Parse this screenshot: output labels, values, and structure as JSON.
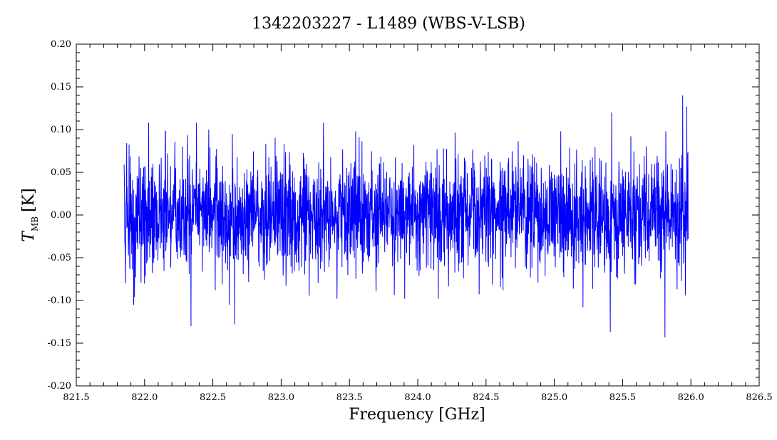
{
  "chart_data": {
    "type": "line",
    "title": "1342203227 - L1489 (WBS-V-LSB)",
    "xlabel": "Frequency [GHz]",
    "ylabel_main": "T",
    "ylabel_sub": "MB",
    "ylabel_unit": "[K]",
    "xlim": [
      821.5,
      826.5
    ],
    "ylim": [
      -0.2,
      0.2
    ],
    "xticks": [
      821.5,
      822.0,
      822.5,
      823.0,
      823.5,
      824.0,
      824.5,
      825.0,
      825.5,
      826.0,
      826.5
    ],
    "xtick_labels": [
      "821.5",
      "822.0",
      "822.5",
      "823.0",
      "823.5",
      "824.0",
      "824.5",
      "825.0",
      "825.5",
      "826.0",
      "826.5"
    ],
    "yticks": [
      -0.2,
      -0.15,
      -0.1,
      -0.05,
      0.0,
      0.05,
      0.1,
      0.15,
      0.2
    ],
    "ytick_labels": [
      "-0.20",
      "-0.15",
      "-0.10",
      "-0.05",
      "0.00",
      "0.05",
      "0.10",
      "0.15",
      "0.20"
    ],
    "grid": false,
    "series_color": "#0000ff",
    "series": [
      {
        "x_start": 821.85,
        "x_end": 825.98,
        "noise_rms": 0.033,
        "peaks": [
          {
            "x": 821.86,
            "y": -0.08
          },
          {
            "x": 821.92,
            "y": -0.105
          },
          {
            "x": 822.03,
            "y": 0.108
          },
          {
            "x": 822.34,
            "y": -0.13
          },
          {
            "x": 822.38,
            "y": 0.108
          },
          {
            "x": 822.47,
            "y": 0.1
          },
          {
            "x": 822.62,
            "y": -0.105
          },
          {
            "x": 822.66,
            "y": -0.128
          },
          {
            "x": 823.31,
            "y": 0.108
          },
          {
            "x": 825.21,
            "y": -0.108
          },
          {
            "x": 825.41,
            "y": -0.137
          },
          {
            "x": 825.42,
            "y": 0.12
          },
          {
            "x": 825.81,
            "y": -0.143
          },
          {
            "x": 825.94,
            "y": 0.14
          },
          {
            "x": 825.97,
            "y": 0.127
          }
        ]
      }
    ]
  }
}
